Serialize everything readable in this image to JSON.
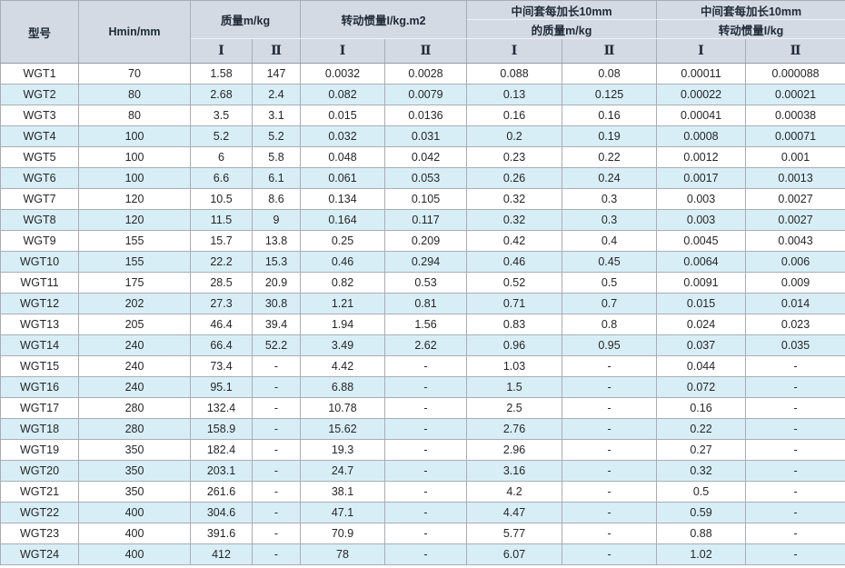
{
  "table": {
    "header": {
      "col_model": "型号",
      "col_hmin": "Hmin/mm",
      "group_mass": "质量m/kg",
      "group_inertia": "转动惯量I/kg.m2",
      "group_ext_mass_line1": "中间套每加长10mm",
      "group_ext_mass_line2": "的质量m/kg",
      "group_ext_inertia_line1": "中间套每加长10mm",
      "group_ext_inertia_line2": "转动惯量I/kg",
      "sub_i": "Ⅰ",
      "sub_ii": "Ⅱ"
    },
    "rows": [
      [
        "WGT1",
        "70",
        "1.58",
        "147",
        "0.0032",
        "0.0028",
        "0.088",
        "0.08",
        "0.00011",
        "0.000088"
      ],
      [
        "WGT2",
        "80",
        "2.68",
        "2.4",
        "0.082",
        "0.0079",
        "0.13",
        "0.125",
        "0.00022",
        "0.00021"
      ],
      [
        "WGT3",
        "80",
        "3.5",
        "3.1",
        "0.015",
        "0.0136",
        "0.16",
        "0.16",
        "0.00041",
        "0.00038"
      ],
      [
        "WGT4",
        "100",
        "5.2",
        "5.2",
        "0.032",
        "0.031",
        "0.2",
        "0.19",
        "0.0008",
        "0.00071"
      ],
      [
        "WGT5",
        "100",
        "6",
        "5.8",
        "0.048",
        "0.042",
        "0.23",
        "0.22",
        "0.0012",
        "0.001"
      ],
      [
        "WGT6",
        "100",
        "6.6",
        "6.1",
        "0.061",
        "0.053",
        "0.26",
        "0.24",
        "0.0017",
        "0.0013"
      ],
      [
        "WGT7",
        "120",
        "10.5",
        "8.6",
        "0.134",
        "0.105",
        "0.32",
        "0.3",
        "0.003",
        "0.0027"
      ],
      [
        "WGT8",
        "120",
        "11.5",
        "9",
        "0.164",
        "0.117",
        "0.32",
        "0.3",
        "0.003",
        "0.0027"
      ],
      [
        "WGT9",
        "155",
        "15.7",
        "13.8",
        "0.25",
        "0.209",
        "0.42",
        "0.4",
        "0.0045",
        "0.0043"
      ],
      [
        "WGT10",
        "155",
        "22.2",
        "15.3",
        "0.46",
        "0.294",
        "0.46",
        "0.45",
        "0.0064",
        "0.006"
      ],
      [
        "WGT11",
        "175",
        "28.5",
        "20.9",
        "0.82",
        "0.53",
        "0.52",
        "0.5",
        "0.0091",
        "0.009"
      ],
      [
        "WGT12",
        "202",
        "27.3",
        "30.8",
        "1.21",
        "0.81",
        "0.71",
        "0.7",
        "0.015",
        "0.014"
      ],
      [
        "WGT13",
        "205",
        "46.4",
        "39.4",
        "1.94",
        "1.56",
        "0.83",
        "0.8",
        "0.024",
        "0.023"
      ],
      [
        "WGT14",
        "240",
        "66.4",
        "52.2",
        "3.49",
        "2.62",
        "0.96",
        "0.95",
        "0.037",
        "0.035"
      ],
      [
        "WGT15",
        "240",
        "73.4",
        "-",
        "4.42",
        "-",
        "1.03",
        "-",
        "0.044",
        "-"
      ],
      [
        "WGT16",
        "240",
        "95.1",
        "-",
        "6.88",
        "-",
        "1.5",
        "-",
        "0.072",
        "-"
      ],
      [
        "WGT17",
        "280",
        "132.4",
        "-",
        "10.78",
        "-",
        "2.5",
        "-",
        "0.16",
        "-"
      ],
      [
        "WGT18",
        "280",
        "158.9",
        "-",
        "15.62",
        "-",
        "2.76",
        "-",
        "0.22",
        "-"
      ],
      [
        "WGT19",
        "350",
        "182.4",
        "-",
        "19.3",
        "-",
        "2.96",
        "-",
        "0.27",
        "-"
      ],
      [
        "WGT20",
        "350",
        "203.1",
        "-",
        "24.7",
        "-",
        "3.16",
        "-",
        "0.32",
        "-"
      ],
      [
        "WGT21",
        "350",
        "261.6",
        "-",
        "38.1",
        "-",
        "4.2",
        "-",
        "0.5",
        "-"
      ],
      [
        "WGT22",
        "400",
        "304.6",
        "-",
        "47.1",
        "-",
        "4.47",
        "-",
        "0.59",
        "-"
      ],
      [
        "WGT23",
        "400",
        "391.6",
        "-",
        "70.9",
        "-",
        "5.77",
        "-",
        "0.88",
        "-"
      ],
      [
        "WGT24",
        "400",
        "412",
        "-",
        "78",
        "-",
        "6.07",
        "-",
        "1.02",
        "-"
      ]
    ],
    "colors": {
      "header_bg": "#d4dae4",
      "stripe_bg": "#d8eef7",
      "border": "#a9adb4",
      "header_text": "#212b38",
      "body_text": "#262626"
    }
  }
}
